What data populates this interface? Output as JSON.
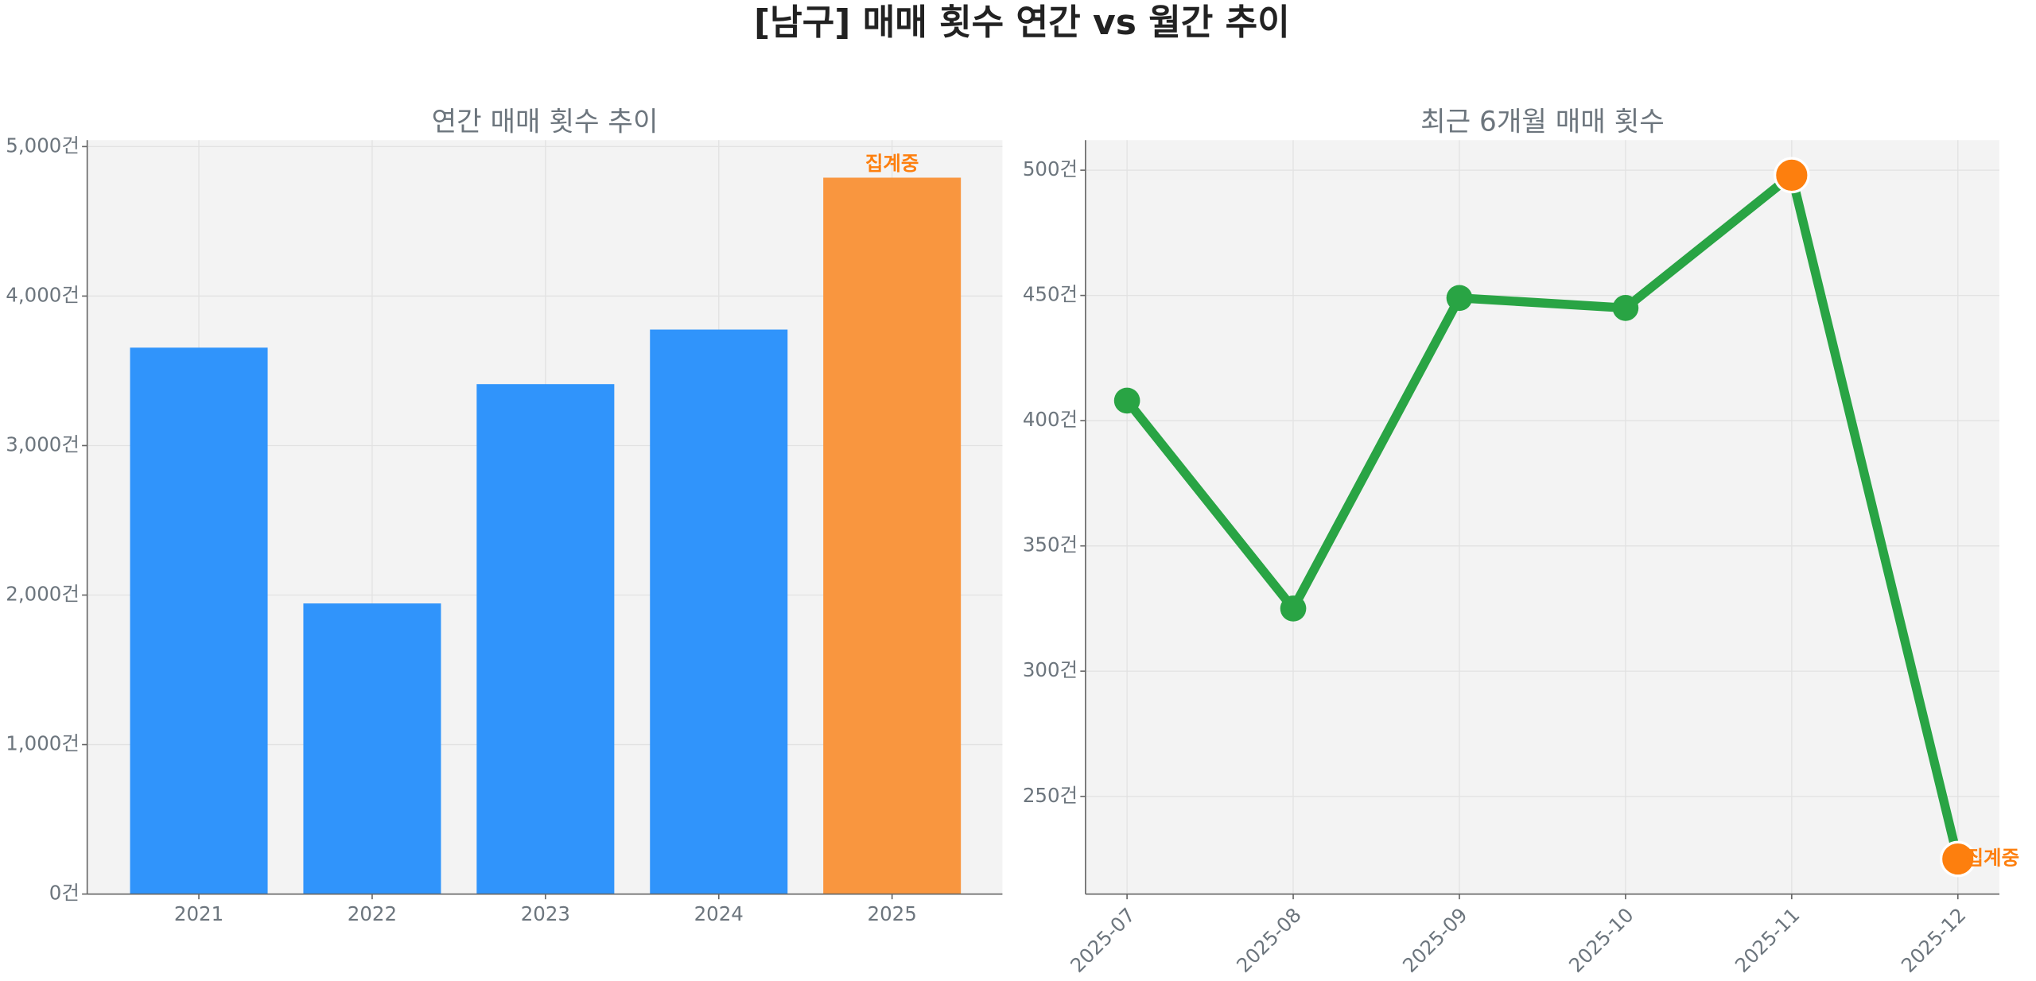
{
  "title": "[남구] 매매 횟수 연간 vs 월간 추이",
  "chart_data": [
    {
      "type": "bar",
      "title": "연간 매매 횟수 추이",
      "categories": [
        "2021",
        "2022",
        "2023",
        "2024",
        "2025"
      ],
      "values": [
        3655,
        1944,
        3411,
        3776,
        4792
      ],
      "colors": [
        "#3094fb",
        "#3094fb",
        "#3094fb",
        "#3094fb",
        "#f9963f"
      ],
      "annotation": "집계중",
      "annotation_color": "#fd7f0e",
      "ylim": [
        0,
        5043
      ],
      "yticks": [
        {
          "value": 0,
          "label": "0건"
        },
        {
          "value": 1000,
          "label": "1,000건"
        },
        {
          "value": 2000,
          "label": "2,000건"
        },
        {
          "value": 3000,
          "label": "3,000건"
        },
        {
          "value": 4000,
          "label": "4,000건"
        },
        {
          "value": 5000,
          "label": "5,000건"
        }
      ],
      "grid": true
    },
    {
      "type": "line",
      "title": "최근 6개월 매매 횟수",
      "categories": [
        "2025-07",
        "2025-08",
        "2025-09",
        "2025-10",
        "2025-11",
        "2025-12"
      ],
      "values": [
        408,
        325,
        449,
        445,
        498,
        225
      ],
      "color": "#29a444",
      "marker_colors": [
        "#29a444",
        "#29a444",
        "#29a444",
        "#29a444",
        "#fd7f0e",
        "#fd7f0e"
      ],
      "annotation": "집계중",
      "annotation_color": "#fd7f0e",
      "ylim": [
        211,
        512
      ],
      "yticks": [
        {
          "value": 250,
          "label": "250건"
        },
        {
          "value": 300,
          "label": "300건"
        },
        {
          "value": 350,
          "label": "350건"
        },
        {
          "value": 400,
          "label": "400건"
        },
        {
          "value": 450,
          "label": "450건"
        },
        {
          "value": 500,
          "label": "500건"
        }
      ],
      "grid": true
    }
  ]
}
